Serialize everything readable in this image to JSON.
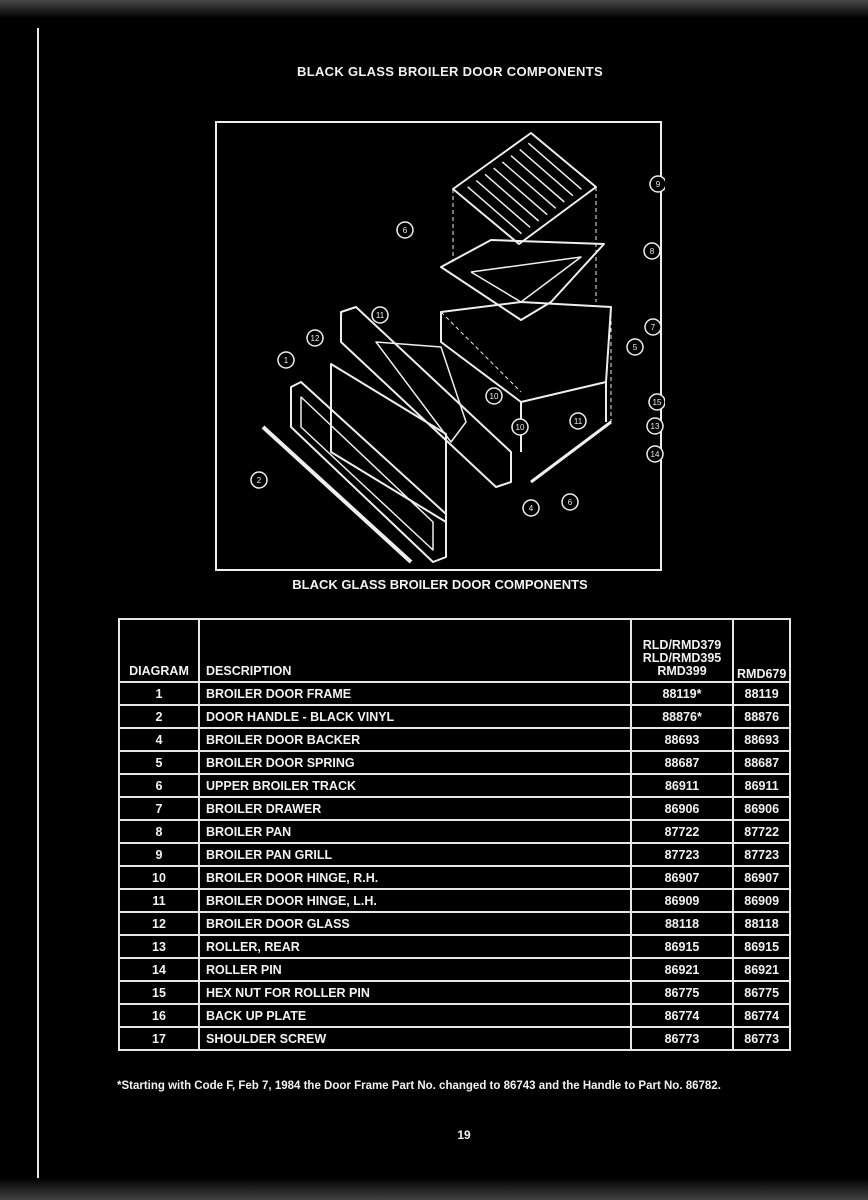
{
  "page": {
    "title": "BLACK GLASS BROILER DOOR COMPONENTS",
    "diagram_caption": "BLACK GLASS BROILER DOOR COMPONENTS",
    "diagram_callouts": [
      "9",
      "8",
      "6",
      "11",
      "12",
      "1",
      "7",
      "5",
      "10",
      "10",
      "11",
      "15",
      "13",
      "14",
      "2",
      "4",
      "6"
    ],
    "table": {
      "headers": {
        "diagram": "DIAGRAM",
        "description": "DESCRIPTION",
        "col_a_line1": "RLD/RMD379",
        "col_a_line2": "RLD/RMD395",
        "col_a_line3": "RMD399",
        "col_b": "RMD679"
      },
      "rows": [
        {
          "diagram": "1",
          "description": "BROILER DOOR FRAME",
          "a": "88119*",
          "b": "88119"
        },
        {
          "diagram": "2",
          "description": "DOOR HANDLE - BLACK VINYL",
          "a": "88876*",
          "b": "88876"
        },
        {
          "diagram": "4",
          "description": "BROILER DOOR BACKER",
          "a": "88693",
          "b": "88693"
        },
        {
          "diagram": "5",
          "description": "BROILER DOOR SPRING",
          "a": "88687",
          "b": "88687"
        },
        {
          "diagram": "6",
          "description": "UPPER BROILER TRACK",
          "a": "86911",
          "b": "86911"
        },
        {
          "diagram": "7",
          "description": "BROILER DRAWER",
          "a": "86906",
          "b": "86906"
        },
        {
          "diagram": "8",
          "description": "BROILER PAN",
          "a": "87722",
          "b": "87722"
        },
        {
          "diagram": "9",
          "description": "BROILER PAN GRILL",
          "a": "87723",
          "b": "87723"
        },
        {
          "diagram": "10",
          "description": "BROILER DOOR HINGE, R.H.",
          "a": "86907",
          "b": "86907"
        },
        {
          "diagram": "11",
          "description": "BROILER DOOR HINGE, L.H.",
          "a": "86909",
          "b": "86909"
        },
        {
          "diagram": "12",
          "description": "BROILER DOOR GLASS",
          "a": "88118",
          "b": "88118"
        },
        {
          "diagram": "13",
          "description": "ROLLER, REAR",
          "a": "86915",
          "b": "86915"
        },
        {
          "diagram": "14",
          "description": "ROLLER PIN",
          "a": "86921",
          "b": "86921"
        },
        {
          "diagram": "15",
          "description": "HEX NUT FOR ROLLER PIN",
          "a": "86775",
          "b": "86775"
        },
        {
          "diagram": "16",
          "description": "BACK UP PLATE",
          "a": "86774",
          "b": "86774"
        },
        {
          "diagram": "17",
          "description": "SHOULDER SCREW",
          "a": "86773",
          "b": "86773"
        }
      ]
    },
    "footnote": "*Starting with Code F, Feb 7, 1984 the Door Frame Part No. changed to 86743 and the Handle to Part No. 86782.",
    "page_number": "19"
  },
  "colors": {
    "background": "#000000",
    "ink": "#f2f2f2"
  }
}
